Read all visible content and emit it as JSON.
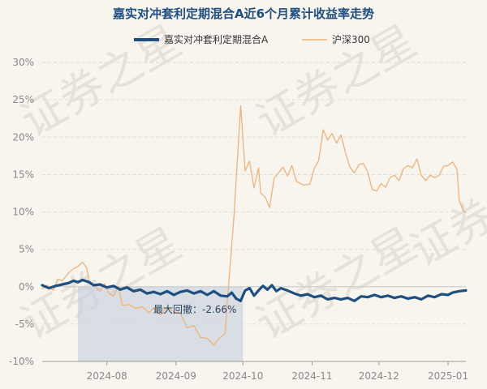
{
  "watermark": "证券之星",
  "chart_data": {
    "type": "line",
    "title": "嘉实对冲套利定期混合A近6个月累计收益率走势",
    "xlabel": "",
    "ylabel": "",
    "ylim": [
      -10,
      30
    ],
    "yticks": [
      -10,
      -5,
      0,
      5,
      10,
      15,
      20,
      25,
      30
    ],
    "ytick_labels": [
      "-10%",
      "-5%",
      "0%",
      "5%",
      "10%",
      "15%",
      "20%",
      "25%",
      "30%"
    ],
    "xlim": [
      "2024-07-03",
      "2025-01-09"
    ],
    "xticks": [
      "2024-08-01",
      "2024-09-01",
      "2024-10-01",
      "2024-11-01",
      "2024-12-01",
      "2025-01-01"
    ],
    "xtick_labels": [
      "2024-08",
      "2024-09",
      "2024-10",
      "2024-11",
      "2024-12",
      "2025-01"
    ],
    "grid": true,
    "legend_position": "top",
    "max_drawdown": {
      "label": "最大回撤：-2.66%",
      "start": "2024-07-19",
      "end": "2024-10-01"
    },
    "series": [
      {
        "name": "嘉实对冲套利定期混合A",
        "color": "#1f4e80",
        "points": [
          [
            "2024-07-03",
            0.2
          ],
          [
            "2024-07-06",
            -0.2
          ],
          [
            "2024-07-09",
            0.1
          ],
          [
            "2024-07-12",
            0.3
          ],
          [
            "2024-07-15",
            0.5
          ],
          [
            "2024-07-17",
            0.8
          ],
          [
            "2024-07-19",
            0.6
          ],
          [
            "2024-07-21",
            0.9
          ],
          [
            "2024-07-24",
            0.6
          ],
          [
            "2024-07-26",
            0.2
          ],
          [
            "2024-07-29",
            0.3
          ],
          [
            "2024-08-01",
            -0.1
          ],
          [
            "2024-08-04",
            0.1
          ],
          [
            "2024-08-07",
            -0.4
          ],
          [
            "2024-08-10",
            -0.1
          ],
          [
            "2024-08-13",
            -0.6
          ],
          [
            "2024-08-16",
            -0.4
          ],
          [
            "2024-08-19",
            -0.9
          ],
          [
            "2024-08-22",
            -0.7
          ],
          [
            "2024-08-25",
            -1.0
          ],
          [
            "2024-08-28",
            -0.6
          ],
          [
            "2024-08-31",
            -1.1
          ],
          [
            "2024-09-03",
            -0.7
          ],
          [
            "2024-09-06",
            -0.5
          ],
          [
            "2024-09-09",
            -0.9
          ],
          [
            "2024-09-12",
            -0.6
          ],
          [
            "2024-09-15",
            -1.1
          ],
          [
            "2024-09-18",
            -0.6
          ],
          [
            "2024-09-21",
            -1.2
          ],
          [
            "2024-09-24",
            -1.3
          ],
          [
            "2024-09-26",
            -0.8
          ],
          [
            "2024-09-28",
            -1.6
          ],
          [
            "2024-09-30",
            -1.9
          ],
          [
            "2024-10-01",
            -1.2
          ],
          [
            "2024-10-02",
            -0.5
          ],
          [
            "2024-10-04",
            -0.2
          ],
          [
            "2024-10-06",
            -1.2
          ],
          [
            "2024-10-08",
            -0.5
          ],
          [
            "2024-10-10",
            0.1
          ],
          [
            "2024-10-12",
            -0.4
          ],
          [
            "2024-10-14",
            0.2
          ],
          [
            "2024-10-16",
            -0.6
          ],
          [
            "2024-10-18",
            -0.2
          ],
          [
            "2024-10-21",
            -0.5
          ],
          [
            "2024-10-24",
            -0.9
          ],
          [
            "2024-10-27",
            -1.2
          ],
          [
            "2024-10-30",
            -1.0
          ],
          [
            "2024-11-02",
            -1.4
          ],
          [
            "2024-11-05",
            -1.2
          ],
          [
            "2024-11-08",
            -1.7
          ],
          [
            "2024-11-11",
            -1.5
          ],
          [
            "2024-11-14",
            -1.7
          ],
          [
            "2024-11-17",
            -1.5
          ],
          [
            "2024-11-20",
            -1.9
          ],
          [
            "2024-11-23",
            -1.3
          ],
          [
            "2024-11-26",
            -1.4
          ],
          [
            "2024-11-29",
            -1.1
          ],
          [
            "2024-12-02",
            -1.4
          ],
          [
            "2024-12-05",
            -1.2
          ],
          [
            "2024-12-08",
            -1.5
          ],
          [
            "2024-12-11",
            -1.3
          ],
          [
            "2024-12-14",
            -1.6
          ],
          [
            "2024-12-17",
            -1.4
          ],
          [
            "2024-12-20",
            -1.7
          ],
          [
            "2024-12-23",
            -1.2
          ],
          [
            "2024-12-26",
            -1.4
          ],
          [
            "2024-12-29",
            -1.0
          ],
          [
            "2025-01-01",
            -1.1
          ],
          [
            "2025-01-03",
            -0.8
          ],
          [
            "2025-01-06",
            -0.6
          ],
          [
            "2025-01-09",
            -0.5
          ]
        ]
      },
      {
        "name": "沪深300",
        "color": "#f0b27a",
        "points": [
          [
            "2024-07-03",
            -0.3
          ],
          [
            "2024-07-05",
            0.2
          ],
          [
            "2024-07-08",
            -0.5
          ],
          [
            "2024-07-10",
            1.0
          ],
          [
            "2024-07-12",
            0.8
          ],
          [
            "2024-07-15",
            1.9
          ],
          [
            "2024-07-17",
            2.4
          ],
          [
            "2024-07-19",
            2.7
          ],
          [
            "2024-07-21",
            3.3
          ],
          [
            "2024-07-23",
            2.5
          ],
          [
            "2024-07-24",
            0.6
          ],
          [
            "2024-07-26",
            0.3
          ],
          [
            "2024-07-29",
            -0.6
          ],
          [
            "2024-07-31",
            0.4
          ],
          [
            "2024-08-02",
            -0.9
          ],
          [
            "2024-08-04",
            -1.3
          ],
          [
            "2024-08-06",
            0.0
          ],
          [
            "2024-08-08",
            -2.5
          ],
          [
            "2024-08-11",
            -2.4
          ],
          [
            "2024-08-14",
            -2.9
          ],
          [
            "2024-08-17",
            -2.7
          ],
          [
            "2024-08-20",
            -3.5
          ],
          [
            "2024-08-22",
            -2.8
          ],
          [
            "2024-08-25",
            -3.8
          ],
          [
            "2024-08-28",
            -2.7
          ],
          [
            "2024-08-31",
            -3.4
          ],
          [
            "2024-09-03",
            -3.6
          ],
          [
            "2024-09-06",
            -5.5
          ],
          [
            "2024-09-09",
            -5.2
          ],
          [
            "2024-09-12",
            -6.8
          ],
          [
            "2024-09-15",
            -6.9
          ],
          [
            "2024-09-18",
            -7.8
          ],
          [
            "2024-09-20",
            -7.0
          ],
          [
            "2024-09-23",
            -6.3
          ],
          [
            "2024-09-24",
            -2.0
          ],
          [
            "2024-09-26",
            5.5
          ],
          [
            "2024-09-27",
            9.5
          ],
          [
            "2024-09-30",
            24.2
          ],
          [
            "2024-10-02",
            15.5
          ],
          [
            "2024-10-04",
            16.8
          ],
          [
            "2024-10-06",
            13.2
          ],
          [
            "2024-10-08",
            15.9
          ],
          [
            "2024-10-09",
            12.5
          ],
          [
            "2024-10-11",
            12.0
          ],
          [
            "2024-10-13",
            10.6
          ],
          [
            "2024-10-15",
            14.5
          ],
          [
            "2024-10-17",
            15.2
          ],
          [
            "2024-10-19",
            16.0
          ],
          [
            "2024-10-21",
            14.8
          ],
          [
            "2024-10-23",
            16.2
          ],
          [
            "2024-10-25",
            14.1
          ],
          [
            "2024-10-28",
            13.6
          ],
          [
            "2024-10-31",
            13.7
          ],
          [
            "2024-11-02",
            15.8
          ],
          [
            "2024-11-04",
            16.9
          ],
          [
            "2024-11-06",
            21.0
          ],
          [
            "2024-11-08",
            19.6
          ],
          [
            "2024-11-10",
            20.5
          ],
          [
            "2024-11-12",
            19.2
          ],
          [
            "2024-11-14",
            20.3
          ],
          [
            "2024-11-16",
            17.9
          ],
          [
            "2024-11-18",
            16.0
          ],
          [
            "2024-11-20",
            15.2
          ],
          [
            "2024-11-22",
            16.3
          ],
          [
            "2024-11-24",
            16.5
          ],
          [
            "2024-11-26",
            15.3
          ],
          [
            "2024-11-28",
            13.0
          ],
          [
            "2024-11-30",
            12.8
          ],
          [
            "2024-12-02",
            13.8
          ],
          [
            "2024-12-04",
            13.3
          ],
          [
            "2024-12-06",
            14.6
          ],
          [
            "2024-12-08",
            14.9
          ],
          [
            "2024-12-10",
            14.2
          ],
          [
            "2024-12-12",
            15.8
          ],
          [
            "2024-12-14",
            16.2
          ],
          [
            "2024-12-16",
            15.9
          ],
          [
            "2024-12-18",
            17.1
          ],
          [
            "2024-12-20",
            14.9
          ],
          [
            "2024-12-22",
            14.2
          ],
          [
            "2024-12-24",
            14.9
          ],
          [
            "2024-12-26",
            14.6
          ],
          [
            "2024-12-28",
            14.9
          ],
          [
            "2024-12-30",
            16.1
          ],
          [
            "2025-01-01",
            16.2
          ],
          [
            "2025-01-03",
            16.7
          ],
          [
            "2025-01-05",
            15.7
          ],
          [
            "2025-01-06",
            11.5
          ],
          [
            "2025-01-08",
            10.1
          ],
          [
            "2025-01-09",
            9.9
          ]
        ]
      }
    ]
  }
}
